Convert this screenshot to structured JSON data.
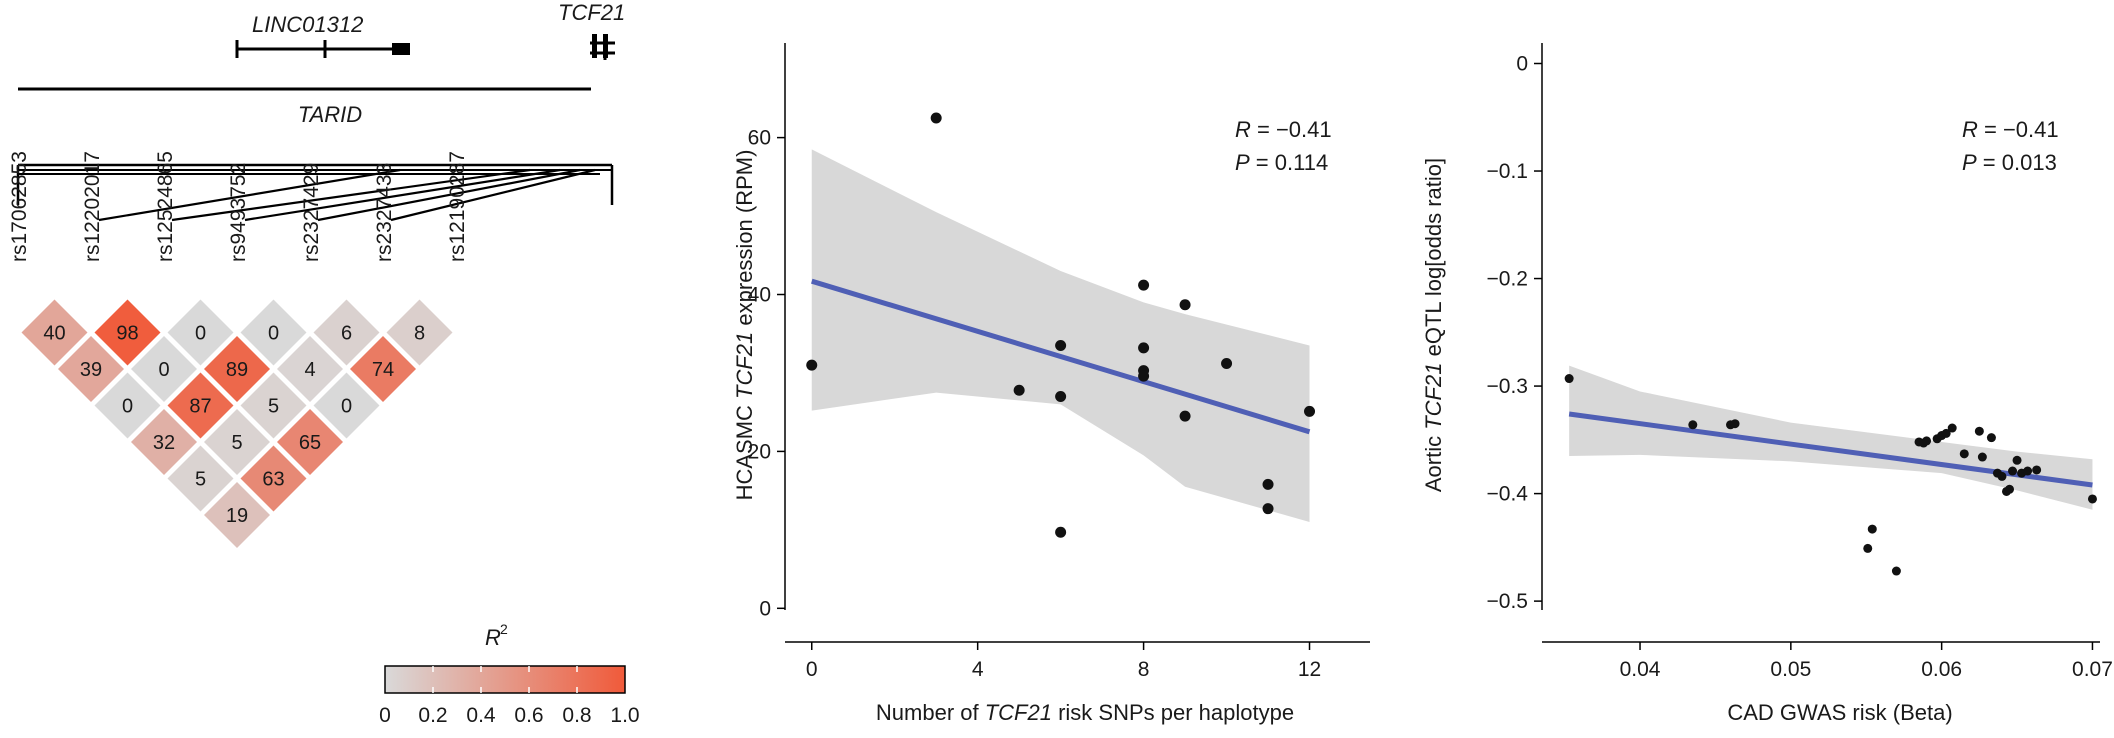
{
  "panel_a": {
    "gene_labels": {
      "linc": "LINC01312",
      "tcf21": "TCF21",
      "tarid": "TARID"
    },
    "snps": [
      "rs17062853",
      "rs12202017",
      "rs12524865",
      "rs9493752",
      "rs2327429",
      "rs2327433",
      "rs12190287"
    ],
    "ld_matrix": {
      "row1": [
        40,
        98,
        0,
        0,
        6,
        8
      ],
      "row2": [
        39,
        0,
        89,
        4,
        74
      ],
      "row3": [
        0,
        87,
        5,
        0
      ],
      "row4": [
        32,
        5,
        65
      ],
      "row5": [
        5,
        63
      ],
      "row6": [
        19
      ]
    },
    "legend": {
      "title": "R",
      "title_sup": "2",
      "ticks": [
        "0",
        "0.2",
        "0.4",
        "0.6",
        "0.8",
        "1.0"
      ],
      "color_low": "#d9d9d9",
      "color_high": "#f05a3a"
    }
  },
  "chart_data": [
    {
      "type": "scatter",
      "xlabel_pre": "Number of ",
      "xlabel_ital": "TCF21",
      "xlabel_post": " risk SNPs per haplotype",
      "ylabel_pre": "HCASMC ",
      "ylabel_ital": "TCF21",
      "ylabel_post": " expression (RPM)",
      "xlim": [
        -0.5,
        13
      ],
      "ylim": [
        -2,
        69
      ],
      "xticks": [
        0,
        4,
        8,
        12
      ],
      "yticks": [
        0,
        20,
        40,
        60
      ],
      "stats": {
        "r_label": "R",
        "r_value": " = −0.41",
        "p_label": "P",
        "p_value": " = 0.114"
      },
      "points": [
        {
          "x": 0,
          "y": 31
        },
        {
          "x": 3,
          "y": 62.5
        },
        {
          "x": 5,
          "y": 27.8
        },
        {
          "x": 6,
          "y": 33.5
        },
        {
          "x": 6,
          "y": 27
        },
        {
          "x": 6,
          "y": 9.7
        },
        {
          "x": 8,
          "y": 41.2
        },
        {
          "x": 8,
          "y": 33.2
        },
        {
          "x": 8,
          "y": 30.3
        },
        {
          "x": 8,
          "y": 29.6
        },
        {
          "x": 9,
          "y": 38.7
        },
        {
          "x": 9,
          "y": 24.5
        },
        {
          "x": 10,
          "y": 31.2
        },
        {
          "x": 11,
          "y": 15.8
        },
        {
          "x": 11,
          "y": 12.7
        },
        {
          "x": 12,
          "y": 25.1
        }
      ],
      "fit": {
        "x": [
          0,
          12
        ],
        "y": [
          41.7,
          22.5
        ]
      },
      "ci_upper": [
        [
          0,
          58.5
        ],
        [
          3,
          50.5
        ],
        [
          6,
          43
        ],
        [
          8,
          39
        ],
        [
          9,
          37.5
        ],
        [
          12,
          33.5
        ]
      ],
      "ci_lower": [
        [
          0,
          25.2
        ],
        [
          3,
          27.5
        ],
        [
          6,
          26
        ],
        [
          8,
          19.5
        ],
        [
          9,
          15.5
        ],
        [
          12,
          11
        ]
      ],
      "line_color": "#4f5fb5",
      "band_color": "#d8d8d8"
    },
    {
      "type": "scatter",
      "xlabel_pre": "CAD GWAS risk (Beta)",
      "xlabel_ital": "",
      "xlabel_post": "",
      "ylabel_pre": "Aortic ",
      "ylabel_ital": "TCF21",
      "ylabel_post": " eQTL log[odds ratio]",
      "xlim": [
        0.0335,
        0.0705
      ],
      "ylim": [
        -0.525,
        0.02
      ],
      "xticks": [
        0.04,
        0.05,
        0.06,
        0.07
      ],
      "xtick_labels": [
        "0.04",
        "0.05",
        "0.06",
        "0.07"
      ],
      "yticks": [
        0,
        -0.1,
        -0.2,
        -0.3,
        -0.4,
        -0.5
      ],
      "ytick_labels": [
        "0",
        "−0.1",
        "−0.2",
        "−0.3",
        "−0.4",
        "−0.5"
      ],
      "stats": {
        "r_label": "R",
        "r_value": " = −0.41",
        "p_label": "P",
        "p_value": " = 0.013"
      },
      "points": [
        {
          "x": 0.0353,
          "y": -0.293
        },
        {
          "x": 0.0435,
          "y": -0.336
        },
        {
          "x": 0.046,
          "y": -0.336
        },
        {
          "x": 0.0463,
          "y": -0.335
        },
        {
          "x": 0.0585,
          "y": -0.352
        },
        {
          "x": 0.0588,
          "y": -0.353
        },
        {
          "x": 0.059,
          "y": -0.351
        },
        {
          "x": 0.0597,
          "y": -0.349
        },
        {
          "x": 0.06,
          "y": -0.346
        },
        {
          "x": 0.0603,
          "y": -0.344
        },
        {
          "x": 0.0607,
          "y": -0.339
        },
        {
          "x": 0.0615,
          "y": -0.363
        },
        {
          "x": 0.0625,
          "y": -0.342
        },
        {
          "x": 0.0627,
          "y": -0.366
        },
        {
          "x": 0.0633,
          "y": -0.348
        },
        {
          "x": 0.0637,
          "y": -0.381
        },
        {
          "x": 0.064,
          "y": -0.384
        },
        {
          "x": 0.0643,
          "y": -0.398
        },
        {
          "x": 0.0645,
          "y": -0.396
        },
        {
          "x": 0.0647,
          "y": -0.379
        },
        {
          "x": 0.065,
          "y": -0.369
        },
        {
          "x": 0.0653,
          "y": -0.381
        },
        {
          "x": 0.0657,
          "y": -0.379
        },
        {
          "x": 0.0663,
          "y": -0.378
        },
        {
          "x": 0.0551,
          "y": -0.451
        },
        {
          "x": 0.0554,
          "y": -0.433
        },
        {
          "x": 0.057,
          "y": -0.472
        },
        {
          "x": 0.07,
          "y": -0.405
        }
      ],
      "fit": {
        "x": [
          0.0353,
          0.07
        ],
        "y": [
          -0.326,
          -0.392
        ]
      },
      "ci_upper": [
        [
          0.0353,
          -0.281
        ],
        [
          0.04,
          -0.305
        ],
        [
          0.05,
          -0.334
        ],
        [
          0.06,
          -0.352
        ],
        [
          0.065,
          -0.361
        ],
        [
          0.07,
          -0.368
        ]
      ],
      "ci_lower": [
        [
          0.0353,
          -0.365
        ],
        [
          0.04,
          -0.364
        ],
        [
          0.05,
          -0.37
        ],
        [
          0.06,
          -0.381
        ],
        [
          0.065,
          -0.397
        ],
        [
          0.07,
          -0.415
        ]
      ],
      "line_color": "#4f5fb5",
      "band_color": "#d8d8d8"
    }
  ]
}
